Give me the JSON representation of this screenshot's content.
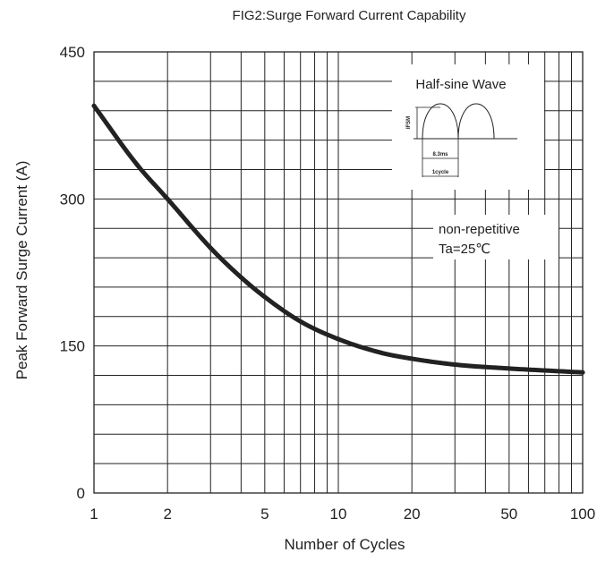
{
  "chart_data": {
    "type": "line",
    "title": "FIG2:Surge Forward Current Capability",
    "xlabel": "Number of Cycles",
    "ylabel": "Peak Forward Surge Current (A)",
    "x_scale": "log",
    "xlim": [
      1,
      100
    ],
    "ylim": [
      0,
      450
    ],
    "x_ticks": [
      1,
      2,
      5,
      10,
      20,
      50,
      100
    ],
    "x_tick_labels": [
      "1",
      "2",
      "5",
      "10",
      "20",
      "50",
      "100"
    ],
    "y_ticks": [
      0,
      150,
      300,
      450
    ],
    "y_tick_labels": [
      "0",
      "150",
      "300",
      "450"
    ],
    "grid": true,
    "series": [
      {
        "x": [
          1,
          1.5,
          2,
          3,
          4,
          5,
          7,
          10,
          15,
          20,
          30,
          50,
          70,
          100
        ],
        "y": [
          395,
          335,
          300,
          250,
          220,
          200,
          175,
          157,
          143,
          137,
          131,
          127,
          125,
          123
        ]
      }
    ],
    "annotations": {
      "inset_title": "Half-sine Wave",
      "inset_ifsm": "IFSM",
      "inset_period": "8.3ms",
      "inset_cycle": "1cycle",
      "condition_line1": "non-repetitive",
      "condition_line2": "Ta=25℃"
    }
  }
}
